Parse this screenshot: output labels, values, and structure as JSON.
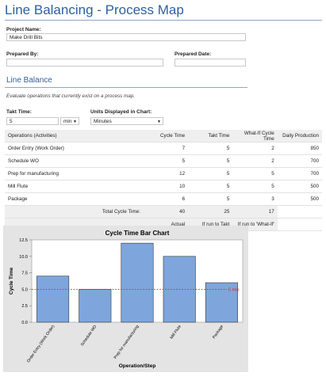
{
  "header": {
    "title": "Line Balancing - Process Map"
  },
  "project": {
    "name_label": "Project Name:",
    "name_value": "Make Drill Bits",
    "prepared_by_label": "Prepared By:",
    "prepared_date_label": "Prepared Date:"
  },
  "section": {
    "title": "Line Balance",
    "description": "Evaluate operations that currently exist on a process map."
  },
  "settings": {
    "takt_label": "Takt Time:",
    "takt_value": "5",
    "takt_unit": "min",
    "units_label": "Units Displayed in Chart:",
    "units_value": "Minutes"
  },
  "table": {
    "columns": [
      "Operations (Activities)",
      "Cycle Time",
      "Takt Time",
      "What-If Cycle Time",
      "Daily Production"
    ],
    "rows": [
      [
        "Order Entry (Work Order)",
        7,
        5,
        2,
        850
      ],
      [
        "Schedule WO",
        5,
        5,
        2,
        700
      ],
      [
        "Prep for manufacturing",
        12,
        5,
        5,
        700
      ],
      [
        "Mill Flute",
        10,
        5,
        5,
        500
      ],
      [
        "Package",
        6,
        5,
        3,
        500
      ]
    ],
    "total": [
      "Total Cycle Time:",
      40,
      25,
      17
    ],
    "footer": [
      "Actual",
      "If run to Takt",
      "If run to 'What-If'"
    ]
  },
  "chart_data": {
    "type": "bar",
    "title": "Cycle Time Bar Chart",
    "x_label": "Operation/Step",
    "y_label": "Cycle Time",
    "categories": [
      "Order Entry (Work Order)",
      "Schedule WO",
      "Prep for manufacturing",
      "Mill Flute",
      "Package"
    ],
    "values": [
      7,
      5,
      12,
      10,
      6
    ],
    "color": "#7ea6dc",
    "ylim": [
      0,
      12.5
    ],
    "yticks": [
      {
        "value": 0,
        "label": "0.0"
      },
      {
        "value": 2.5,
        "label": "2.5"
      },
      {
        "value": 5,
        "label": "5.0"
      },
      {
        "value": 7.5,
        "label": "7.5"
      },
      {
        "value": 10,
        "label": "10.0"
      },
      {
        "value": 12.5,
        "label": "12.5"
      }
    ],
    "reference_line": {
      "value": 5,
      "label": "5 min",
      "color": "#d9232a"
    }
  }
}
